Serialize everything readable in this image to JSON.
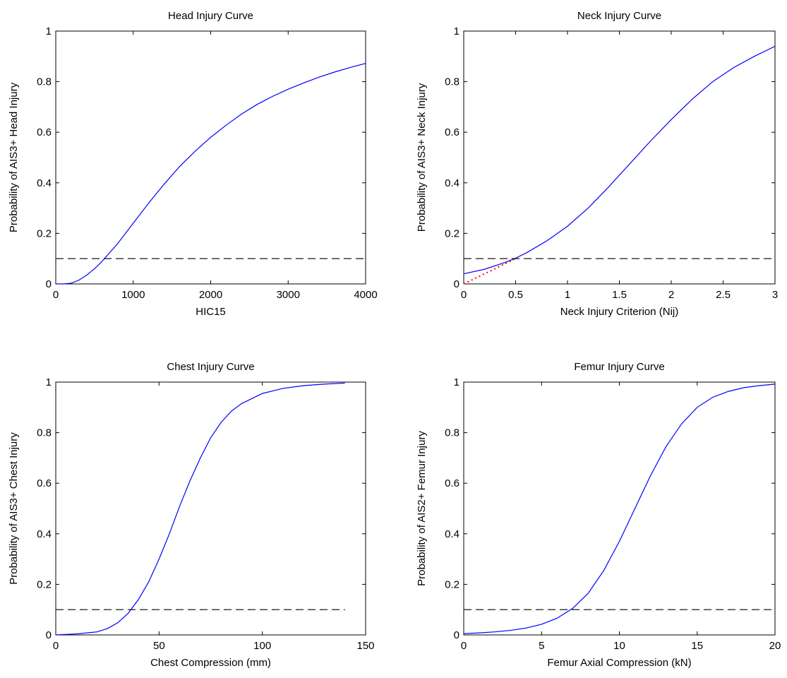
{
  "chart_data": [
    {
      "type": "line",
      "title": "Head Injury Curve",
      "xlabel": "HIC15",
      "ylabel": "Probability of AIS3+ Head Injury",
      "xlim": [
        0,
        4000
      ],
      "ylim": [
        0,
        1
      ],
      "xticks": [
        0,
        1000,
        2000,
        3000,
        4000
      ],
      "xtick_labels": [
        "0",
        "1000",
        "2000",
        "3000",
        "4000"
      ],
      "yticks": [
        0,
        0.2,
        0.4,
        0.6,
        0.8,
        1
      ],
      "ytick_labels": [
        "0",
        "0.2",
        "0.4",
        "0.6",
        "0.8",
        "1"
      ],
      "grid": false,
      "series": [
        {
          "style": "solid",
          "color": "#0000ff",
          "x": [
            0,
            100,
            200,
            300,
            400,
            500,
            600,
            700,
            800,
            900,
            1000,
            1200,
            1400,
            1600,
            1800,
            2000,
            2200,
            2400,
            2600,
            2800,
            3000,
            3200,
            3400,
            3600,
            3800,
            4000
          ],
          "y": [
            0,
            0,
            0.003,
            0.015,
            0.035,
            0.06,
            0.09,
            0.125,
            0.16,
            0.2,
            0.24,
            0.32,
            0.395,
            0.465,
            0.525,
            0.58,
            0.628,
            0.672,
            0.71,
            0.742,
            0.77,
            0.795,
            0.818,
            0.838,
            0.856,
            0.872
          ]
        },
        {
          "style": "dashed",
          "color": "#000000",
          "x": [
            0,
            4000
          ],
          "y": [
            0.1,
            0.1
          ]
        }
      ]
    },
    {
      "type": "line",
      "title": "Neck Injury Curve",
      "xlabel": "Neck Injury Criterion (Nij)",
      "ylabel": "Probability of AIS3+ Neck Injury",
      "xlim": [
        0,
        3
      ],
      "ylim": [
        0,
        1
      ],
      "xticks": [
        0,
        0.5,
        1,
        1.5,
        2,
        2.5,
        3
      ],
      "xtick_labels": [
        "0",
        "0.5",
        "1",
        "1.5",
        "2",
        "2.5",
        "3"
      ],
      "yticks": [
        0,
        0.2,
        0.4,
        0.6,
        0.8,
        1
      ],
      "ytick_labels": [
        "0",
        "0.2",
        "0.4",
        "0.6",
        "0.8",
        "1"
      ],
      "grid": false,
      "series": [
        {
          "style": "solid",
          "color": "#0000ff",
          "x": [
            0,
            0.2,
            0.4,
            0.5,
            0.6,
            0.8,
            1.0,
            1.2,
            1.4,
            1.6,
            1.8,
            2.0,
            2.2,
            2.4,
            2.6,
            2.8,
            3.0
          ],
          "y": [
            0.04,
            0.058,
            0.085,
            0.102,
            0.122,
            0.17,
            0.228,
            0.3,
            0.385,
            0.475,
            0.565,
            0.65,
            0.73,
            0.8,
            0.855,
            0.9,
            0.94
          ]
        },
        {
          "style": "dotted",
          "color": "#ff0000",
          "x": [
            0,
            0.5
          ],
          "y": [
            0,
            0.1
          ]
        },
        {
          "style": "dashed",
          "color": "#000000",
          "x": [
            0,
            3
          ],
          "y": [
            0.1,
            0.1
          ]
        }
      ]
    },
    {
      "type": "line",
      "title": "Chest Injury Curve",
      "xlabel": "Chest Compression (mm)",
      "ylabel": "Probability of AIS3+ Chest Injury",
      "xlim": [
        0,
        150
      ],
      "ylim": [
        0,
        1
      ],
      "xticks": [
        0,
        50,
        100,
        150
      ],
      "xtick_labels": [
        "0",
        "50",
        "100",
        "150"
      ],
      "yticks": [
        0,
        0.2,
        0.4,
        0.6,
        0.8,
        1
      ],
      "ytick_labels": [
        "0",
        "0.2",
        "0.4",
        "0.6",
        "0.8",
        "1"
      ],
      "grid": false,
      "series": [
        {
          "style": "solid",
          "color": "#0000ff",
          "x": [
            0,
            10,
            20,
            25,
            30,
            35,
            40,
            45,
            50,
            55,
            60,
            65,
            70,
            75,
            80,
            85,
            90,
            100,
            110,
            120,
            130,
            140
          ],
          "y": [
            0,
            0.004,
            0.012,
            0.025,
            0.048,
            0.085,
            0.14,
            0.21,
            0.3,
            0.4,
            0.51,
            0.61,
            0.7,
            0.78,
            0.84,
            0.885,
            0.915,
            0.955,
            0.975,
            0.986,
            0.992,
            0.996
          ]
        },
        {
          "style": "dashed",
          "color": "#000000",
          "x": [
            0,
            140
          ],
          "y": [
            0.1,
            0.1
          ]
        }
      ]
    },
    {
      "type": "line",
      "title": "Femur Injury Curve",
      "xlabel": "Femur Axial Compression (kN)",
      "ylabel": "Probability of AIS2+ Femur Injury",
      "xlim": [
        0,
        20
      ],
      "ylim": [
        0,
        1
      ],
      "xticks": [
        0,
        5,
        10,
        15,
        20
      ],
      "xtick_labels": [
        "0",
        "5",
        "10",
        "15",
        "20"
      ],
      "yticks": [
        0,
        0.2,
        0.4,
        0.6,
        0.8,
        1
      ],
      "ytick_labels": [
        "0",
        "0.2",
        "0.4",
        "0.6",
        "0.8",
        "1"
      ],
      "grid": false,
      "series": [
        {
          "style": "solid",
          "color": "#0000ff",
          "x": [
            0,
            1,
            2,
            3,
            4,
            5,
            6,
            7,
            8,
            9,
            10,
            11,
            12,
            13,
            14,
            15,
            16,
            17,
            18,
            19,
            20
          ],
          "y": [
            0.005,
            0.008,
            0.012,
            0.018,
            0.027,
            0.042,
            0.066,
            0.105,
            0.165,
            0.255,
            0.37,
            0.5,
            0.63,
            0.745,
            0.835,
            0.9,
            0.94,
            0.963,
            0.978,
            0.986,
            0.992
          ]
        },
        {
          "style": "dashed",
          "color": "#000000",
          "x": [
            0,
            20
          ],
          "y": [
            0.1,
            0.1
          ]
        }
      ]
    }
  ]
}
